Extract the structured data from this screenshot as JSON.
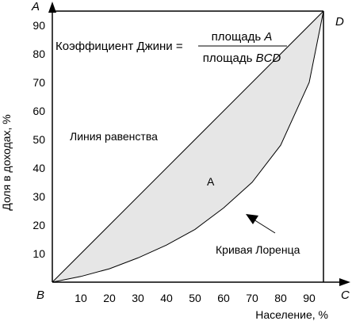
{
  "chart_data": {
    "type": "area",
    "title": "",
    "xlabel": "Население, %",
    "ylabel": "Доля в доходах, %",
    "xlim": [
      0,
      95
    ],
    "ylim": [
      0,
      95
    ],
    "x_ticks": [
      10,
      20,
      30,
      40,
      50,
      60,
      70,
      80,
      90
    ],
    "y_ticks": [
      10,
      20,
      30,
      40,
      50,
      60,
      70,
      80,
      90
    ],
    "grid": false,
    "corners": {
      "A": "A",
      "B": "B",
      "C": "C",
      "D": "D"
    },
    "formula": {
      "lhs": "Коэффициент Джини =",
      "numerator_text": "площадь ",
      "numerator_var": "A",
      "denominator_text": "площадь ",
      "denominator_var": "BCD"
    },
    "equality_line": {
      "label": "Линия равенства",
      "x": [
        0,
        95
      ],
      "y": [
        0,
        95
      ]
    },
    "lorenz_curve": {
      "label": "Кривая Лоренца",
      "x": [
        0,
        10,
        20,
        30,
        40,
        50,
        60,
        70,
        80,
        90,
        95
      ],
      "y": [
        0,
        2,
        4.7,
        8.5,
        13,
        18.5,
        26,
        35,
        48,
        70,
        95
      ]
    },
    "area_label": "A",
    "colors": {
      "fill": "#e6e6e6",
      "stroke": "#000000"
    }
  }
}
